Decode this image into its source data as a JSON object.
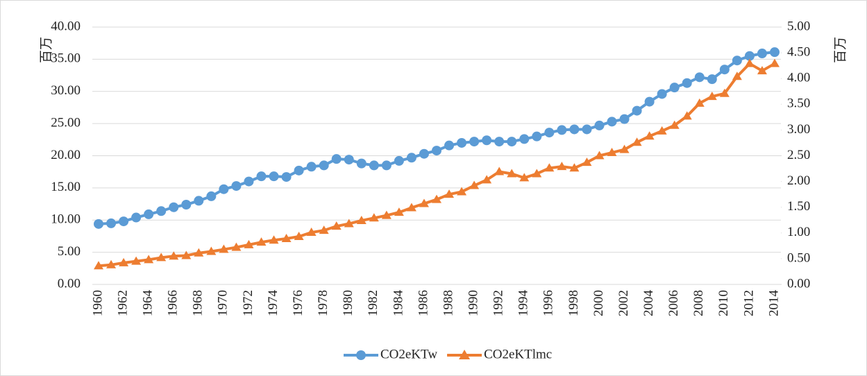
{
  "chart_data": {
    "type": "line",
    "y_label": "百万",
    "y2_label": "百万",
    "categories": [
      "1960",
      null,
      "1962",
      null,
      "1964",
      null,
      "1966",
      null,
      "1968",
      null,
      "1970",
      null,
      "1972",
      null,
      "1974",
      null,
      "1976",
      null,
      "1978",
      null,
      "1980",
      null,
      "1982",
      null,
      "1984",
      null,
      "1986",
      null,
      "1988",
      null,
      "1990",
      null,
      "1992",
      null,
      "1994",
      null,
      "1996",
      null,
      "1998",
      null,
      "2000",
      null,
      "2002",
      null,
      "2004",
      null,
      "2006",
      null,
      "2008",
      null,
      "2010",
      null,
      "2012",
      null,
      "2014"
    ],
    "series": [
      {
        "name": "CO2eKTw",
        "color": "#5b9bd5",
        "marker": "circle",
        "axis": "y",
        "values": [
          9.4,
          9.5,
          9.8,
          10.4,
          10.9,
          11.4,
          12.0,
          12.4,
          13.0,
          13.7,
          14.8,
          15.3,
          16.0,
          16.8,
          16.8,
          16.7,
          17.7,
          18.3,
          18.5,
          19.5,
          19.4,
          18.8,
          18.5,
          18.5,
          19.2,
          19.7,
          20.3,
          20.8,
          21.6,
          22.0,
          22.2,
          22.4,
          22.2,
          22.2,
          22.6,
          23.0,
          23.6,
          24.0,
          24.1,
          24.1,
          24.7,
          25.3,
          25.7,
          27.0,
          28.4,
          29.6,
          30.6,
          31.3,
          32.2,
          31.9,
          33.4,
          34.8,
          35.5,
          35.9,
          36.1
        ]
      },
      {
        "name": "CO2eKTlmc",
        "color": "#ed7d31",
        "marker": "triangle",
        "axis": "y2",
        "values": [
          0.36,
          0.38,
          0.42,
          0.45,
          0.48,
          0.52,
          0.55,
          0.56,
          0.61,
          0.64,
          0.68,
          0.72,
          0.77,
          0.82,
          0.86,
          0.89,
          0.93,
          1.01,
          1.05,
          1.13,
          1.18,
          1.24,
          1.29,
          1.34,
          1.4,
          1.49,
          1.57,
          1.65,
          1.75,
          1.8,
          1.92,
          2.03,
          2.19,
          2.15,
          2.07,
          2.15,
          2.26,
          2.29,
          2.26,
          2.37,
          2.5,
          2.56,
          2.62,
          2.76,
          2.88,
          2.98,
          3.09,
          3.27,
          3.52,
          3.65,
          3.71,
          4.04,
          4.29,
          4.15,
          4.29
        ]
      }
    ],
    "ylim": [
      0,
      40
    ],
    "yticks": [
      {
        "value": 0,
        "label": "0.00"
      },
      {
        "value": 5,
        "label": "5.00"
      },
      {
        "value": 10,
        "label": "10.00"
      },
      {
        "value": 15,
        "label": "15.00"
      },
      {
        "value": 20,
        "label": "20.00"
      },
      {
        "value": 25,
        "label": "25.00"
      },
      {
        "value": 30,
        "label": "30.00"
      },
      {
        "value": 35,
        "label": "35.00"
      },
      {
        "value": 40,
        "label": "40.00"
      }
    ],
    "y2lim": [
      0,
      5
    ],
    "y2ticks": [
      {
        "value": 0,
        "label": "0.00"
      },
      {
        "value": 0.5,
        "label": "0.50"
      },
      {
        "value": 1,
        "label": "1.00"
      },
      {
        "value": 1.5,
        "label": "1.50"
      },
      {
        "value": 2,
        "label": "2.00"
      },
      {
        "value": 2.5,
        "label": "2.50"
      },
      {
        "value": 3,
        "label": "3.00"
      },
      {
        "value": 3.5,
        "label": "3.50"
      },
      {
        "value": 4,
        "label": "4.00"
      },
      {
        "value": 4.5,
        "label": "4.50"
      },
      {
        "value": 5,
        "label": "5.00"
      }
    ],
    "grid": true,
    "legend": "bottom"
  }
}
